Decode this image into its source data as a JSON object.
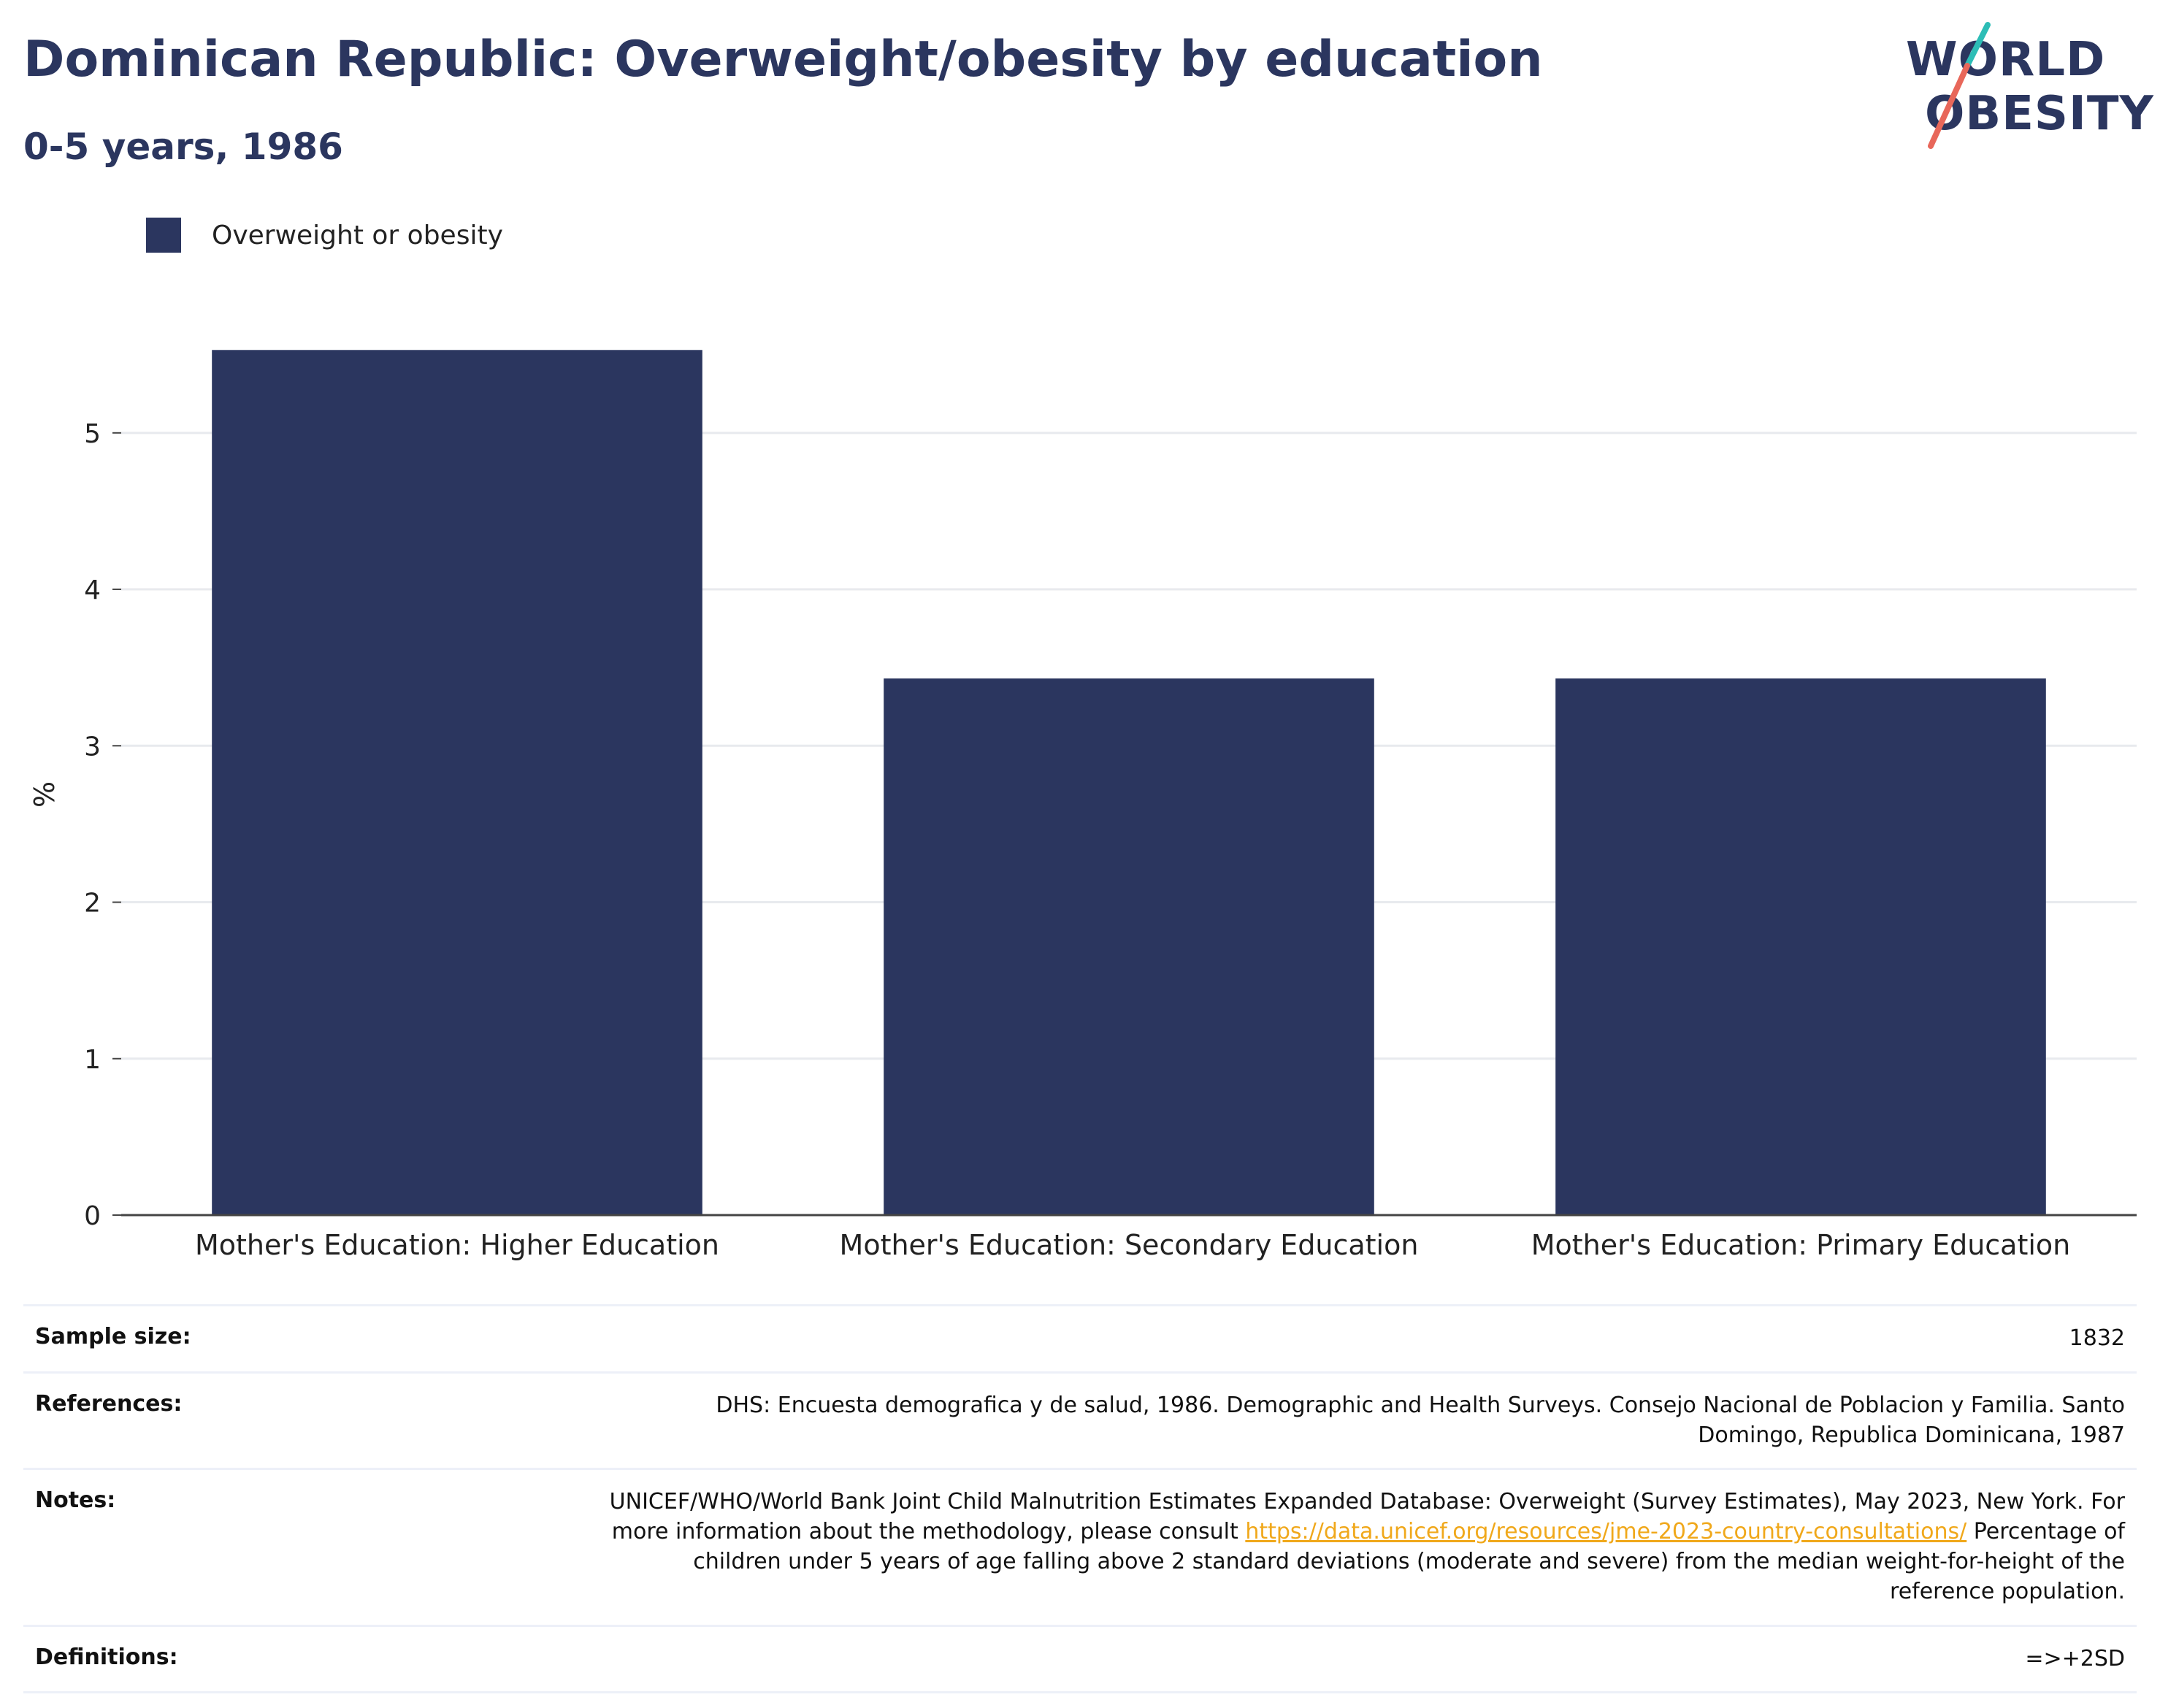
{
  "header": {
    "title": "Dominican Republic: Overweight/obesity by education",
    "subtitle": "0-5 years, 1986"
  },
  "logo": {
    "line1": "WORLD",
    "line2": "OBESITY",
    "colors": {
      "text": "#2b365f",
      "teal": "#2dbdb6",
      "coral": "#e8675a"
    }
  },
  "chart_data": {
    "type": "bar",
    "categories": [
      "Mother's Education: Higher Education",
      "Mother's Education: Secondary Education",
      "Mother's Education: Primary Education"
    ],
    "series": [
      {
        "name": "Overweight or obesity",
        "values": [
          5.53,
          3.43,
          3.43
        ],
        "color": "#2b365f"
      }
    ],
    "title": "Dominican Republic: Overweight/obesity by education",
    "subtitle": "0-5 years, 1986",
    "ylabel": "%",
    "ylim": [
      0,
      5.9
    ],
    "yticks": [
      0,
      1,
      2,
      3,
      4,
      5
    ],
    "grid": true,
    "legend_position": "top-left"
  },
  "info": {
    "sample_size": {
      "label": "Sample size:",
      "value": "1832"
    },
    "references": {
      "label": "References:",
      "value": "DHS: Encuesta demografica y de salud, 1986. Demographic and Health Surveys. Consejo Nacional de Poblacion y Familia. Santo Domingo, Republica Dominicana, 1987"
    },
    "notes": {
      "label": "Notes:",
      "text_before": "UNICEF/WHO/World Bank Joint Child Malnutrition Estimates Expanded Database: Overweight (Survey Estimates), May 2023, New York. For more information about the methodology, please consult ",
      "link": "https://data.unicef.org/resources/jme-2023-country-consultations/",
      "text_after": " Percentage of children under 5 years of age falling above 2 standard deviations (moderate and severe) from the median weight-for-height of the reference population."
    },
    "definitions": {
      "label": "Definitions:",
      "value": "=>+2SD"
    }
  }
}
